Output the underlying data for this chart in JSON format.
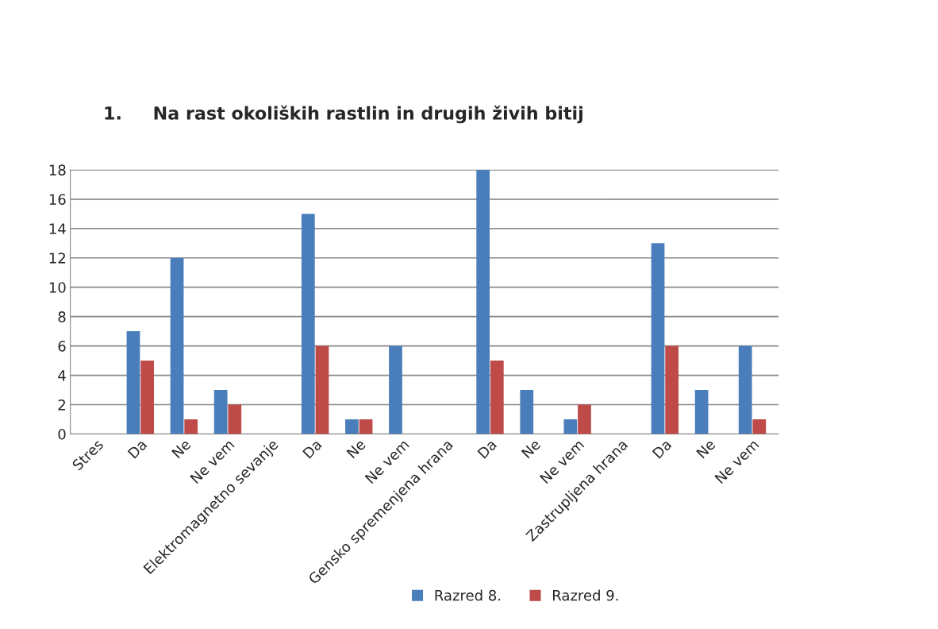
{
  "chart_data": {
    "type": "bar",
    "title": "1.     Na rast okoliških rastlin in drugih živih bitij",
    "categories": [
      "Stres",
      "Da",
      "Ne",
      "Ne vem",
      "Elektromagnetno sevanje",
      "Da",
      "Ne",
      "Ne vem",
      "Gensko spremenjena hrana",
      "Da",
      "Ne",
      "Ne vem",
      "Zastrupljena hrana",
      "Da",
      "Ne",
      "Ne vem"
    ],
    "series": [
      {
        "name": "Razred 8.",
        "color": "#4a7ebb",
        "values": [
          null,
          7,
          12,
          3,
          null,
          15,
          1,
          6,
          null,
          18,
          3,
          1,
          null,
          13,
          3,
          6
        ]
      },
      {
        "name": "Razred 9.",
        "color": "#be4b48",
        "values": [
          null,
          5,
          1,
          2,
          null,
          6,
          1,
          0,
          null,
          5,
          0,
          2,
          null,
          6,
          0,
          1
        ]
      }
    ],
    "ylim": [
      0,
      18
    ],
    "yticks": [
      0,
      2,
      4,
      6,
      8,
      10,
      12,
      14,
      16,
      18
    ],
    "grid": "y",
    "legend": "bottom"
  }
}
